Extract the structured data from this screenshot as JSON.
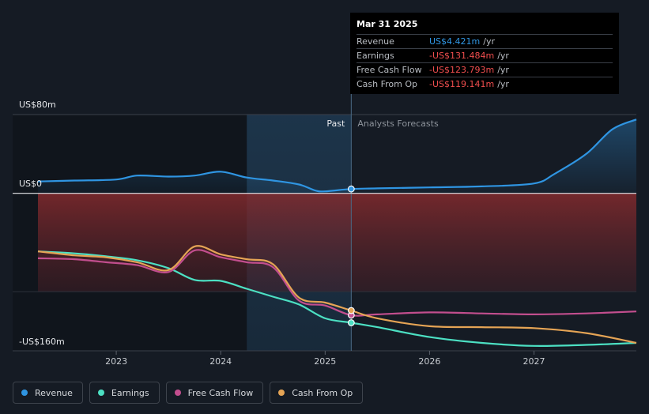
{
  "chart_data": {
    "type": "line",
    "y_axis": {
      "top_label": "US$80m",
      "zero_label": "US$0",
      "bottom_label": "-US$160m",
      "ylim": [
        -160,
        80
      ]
    },
    "x_axis": {
      "ticks": [
        "2023",
        "2024",
        "2025",
        "2026",
        "2027"
      ],
      "xlim": [
        2022.25,
        2027.98
      ]
    },
    "divider_x": 2025.25,
    "past_label": "Past",
    "forecast_label": "Analysts Forecasts",
    "series": [
      {
        "name": "Revenue",
        "color": "#2f95e2",
        "x": [
          2022.25,
          2022.6,
          2023.0,
          2023.2,
          2023.5,
          2023.75,
          2024.0,
          2024.25,
          2024.5,
          2024.75,
          2024.9,
          2025.0,
          2025.25,
          2025.5,
          2026.0,
          2026.5,
          2027.0,
          2027.2,
          2027.5,
          2027.75,
          2027.98
        ],
        "y": [
          12,
          13,
          14,
          18,
          17,
          18,
          22,
          16,
          13,
          9,
          3,
          2,
          4.4,
          5,
          6,
          7,
          10,
          20,
          40,
          65,
          75
        ]
      },
      {
        "name": "Earnings",
        "color": "#4ce0c3",
        "x": [
          2022.25,
          2022.6,
          2022.9,
          2023.2,
          2023.5,
          2023.75,
          2024.0,
          2024.25,
          2024.5,
          2024.75,
          2025.0,
          2025.25,
          2025.5,
          2026.0,
          2026.5,
          2027.0,
          2027.5,
          2027.98
        ],
        "y": [
          -59,
          -61,
          -64,
          -68,
          -76,
          -88,
          -89,
          -97,
          -105,
          -113,
          -127,
          -131.5,
          -136,
          -146,
          -152,
          -155,
          -154,
          -152
        ]
      },
      {
        "name": "Free Cash Flow",
        "color": "#c24e8e",
        "x": [
          2022.25,
          2022.6,
          2022.9,
          2023.2,
          2023.5,
          2023.75,
          2024.0,
          2024.25,
          2024.5,
          2024.75,
          2025.0,
          2025.25,
          2025.5,
          2026.0,
          2026.5,
          2027.0,
          2027.5,
          2027.98
        ],
        "y": [
          -66,
          -67,
          -70,
          -73,
          -80,
          -58,
          -65,
          -70,
          -75,
          -109,
          -114,
          -123.8,
          -123,
          -121,
          -122,
          -123,
          -122,
          -120
        ]
      },
      {
        "name": "Cash From Op",
        "color": "#e5a455",
        "x": [
          2022.25,
          2022.6,
          2022.9,
          2023.2,
          2023.5,
          2023.75,
          2024.0,
          2024.25,
          2024.5,
          2024.75,
          2025.0,
          2025.25,
          2025.5,
          2026.0,
          2026.5,
          2027.0,
          2027.5,
          2027.98
        ],
        "y": [
          -59,
          -63,
          -65,
          -70,
          -78,
          -54,
          -62,
          -67,
          -72,
          -106,
          -111,
          -119.1,
          -127,
          -135,
          -136,
          -137,
          -142,
          -152
        ]
      }
    ]
  },
  "tooltip": {
    "date": "Mar 31 2025",
    "rows": [
      {
        "label": "Revenue",
        "value": "US$4.421m",
        "unit": "/yr",
        "color": "#2f95e2"
      },
      {
        "label": "Earnings",
        "value": "-US$131.484m",
        "unit": "/yr",
        "color": "#f04e4e"
      },
      {
        "label": "Free Cash Flow",
        "value": "-US$123.793m",
        "unit": "/yr",
        "color": "#f04e4e"
      },
      {
        "label": "Cash From Op",
        "value": "-US$119.141m",
        "unit": "/yr",
        "color": "#f04e4e"
      }
    ]
  },
  "legend": [
    {
      "label": "Revenue",
      "color": "#2f95e2"
    },
    {
      "label": "Earnings",
      "color": "#4ce0c3"
    },
    {
      "label": "Free Cash Flow",
      "color": "#c24e8e"
    },
    {
      "label": "Cash From Op",
      "color": "#e5a455"
    }
  ]
}
